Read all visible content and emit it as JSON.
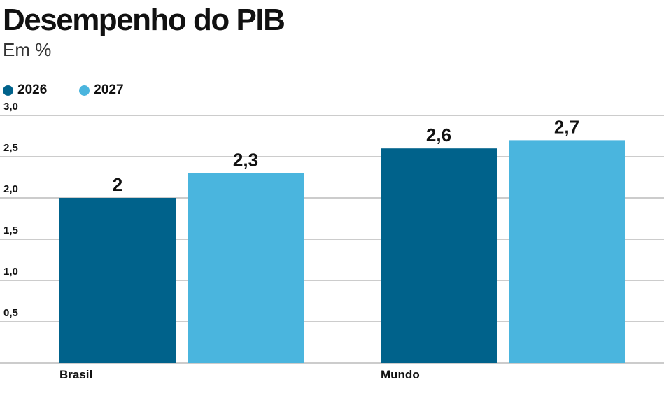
{
  "header": {
    "title": "Desempenho do PIB",
    "subtitle": "Em %"
  },
  "legend": [
    {
      "label": "2026",
      "color": "#00628b"
    },
    {
      "label": "2027",
      "color": "#4ab5de"
    }
  ],
  "chart_data": {
    "type": "bar",
    "categories": [
      "Brasil",
      "Mundo"
    ],
    "series": [
      {
        "name": "2026",
        "values": [
          2,
          2.6
        ],
        "labels": [
          "2",
          "2,6"
        ],
        "color": "#00628b"
      },
      {
        "name": "2027",
        "values": [
          2.3,
          2.7
        ],
        "labels": [
          "2,3",
          "2,7"
        ],
        "color": "#4ab5de"
      }
    ],
    "y_ticks": [
      0.5,
      1.0,
      1.5,
      2.0,
      2.5,
      3.0
    ],
    "y_tick_labels": [
      "0,5",
      "1,0",
      "1,5",
      "2,0",
      "2,5",
      "3,0"
    ],
    "ylim": [
      0,
      3.0
    ],
    "grid": true,
    "legend_position": "top-left"
  }
}
